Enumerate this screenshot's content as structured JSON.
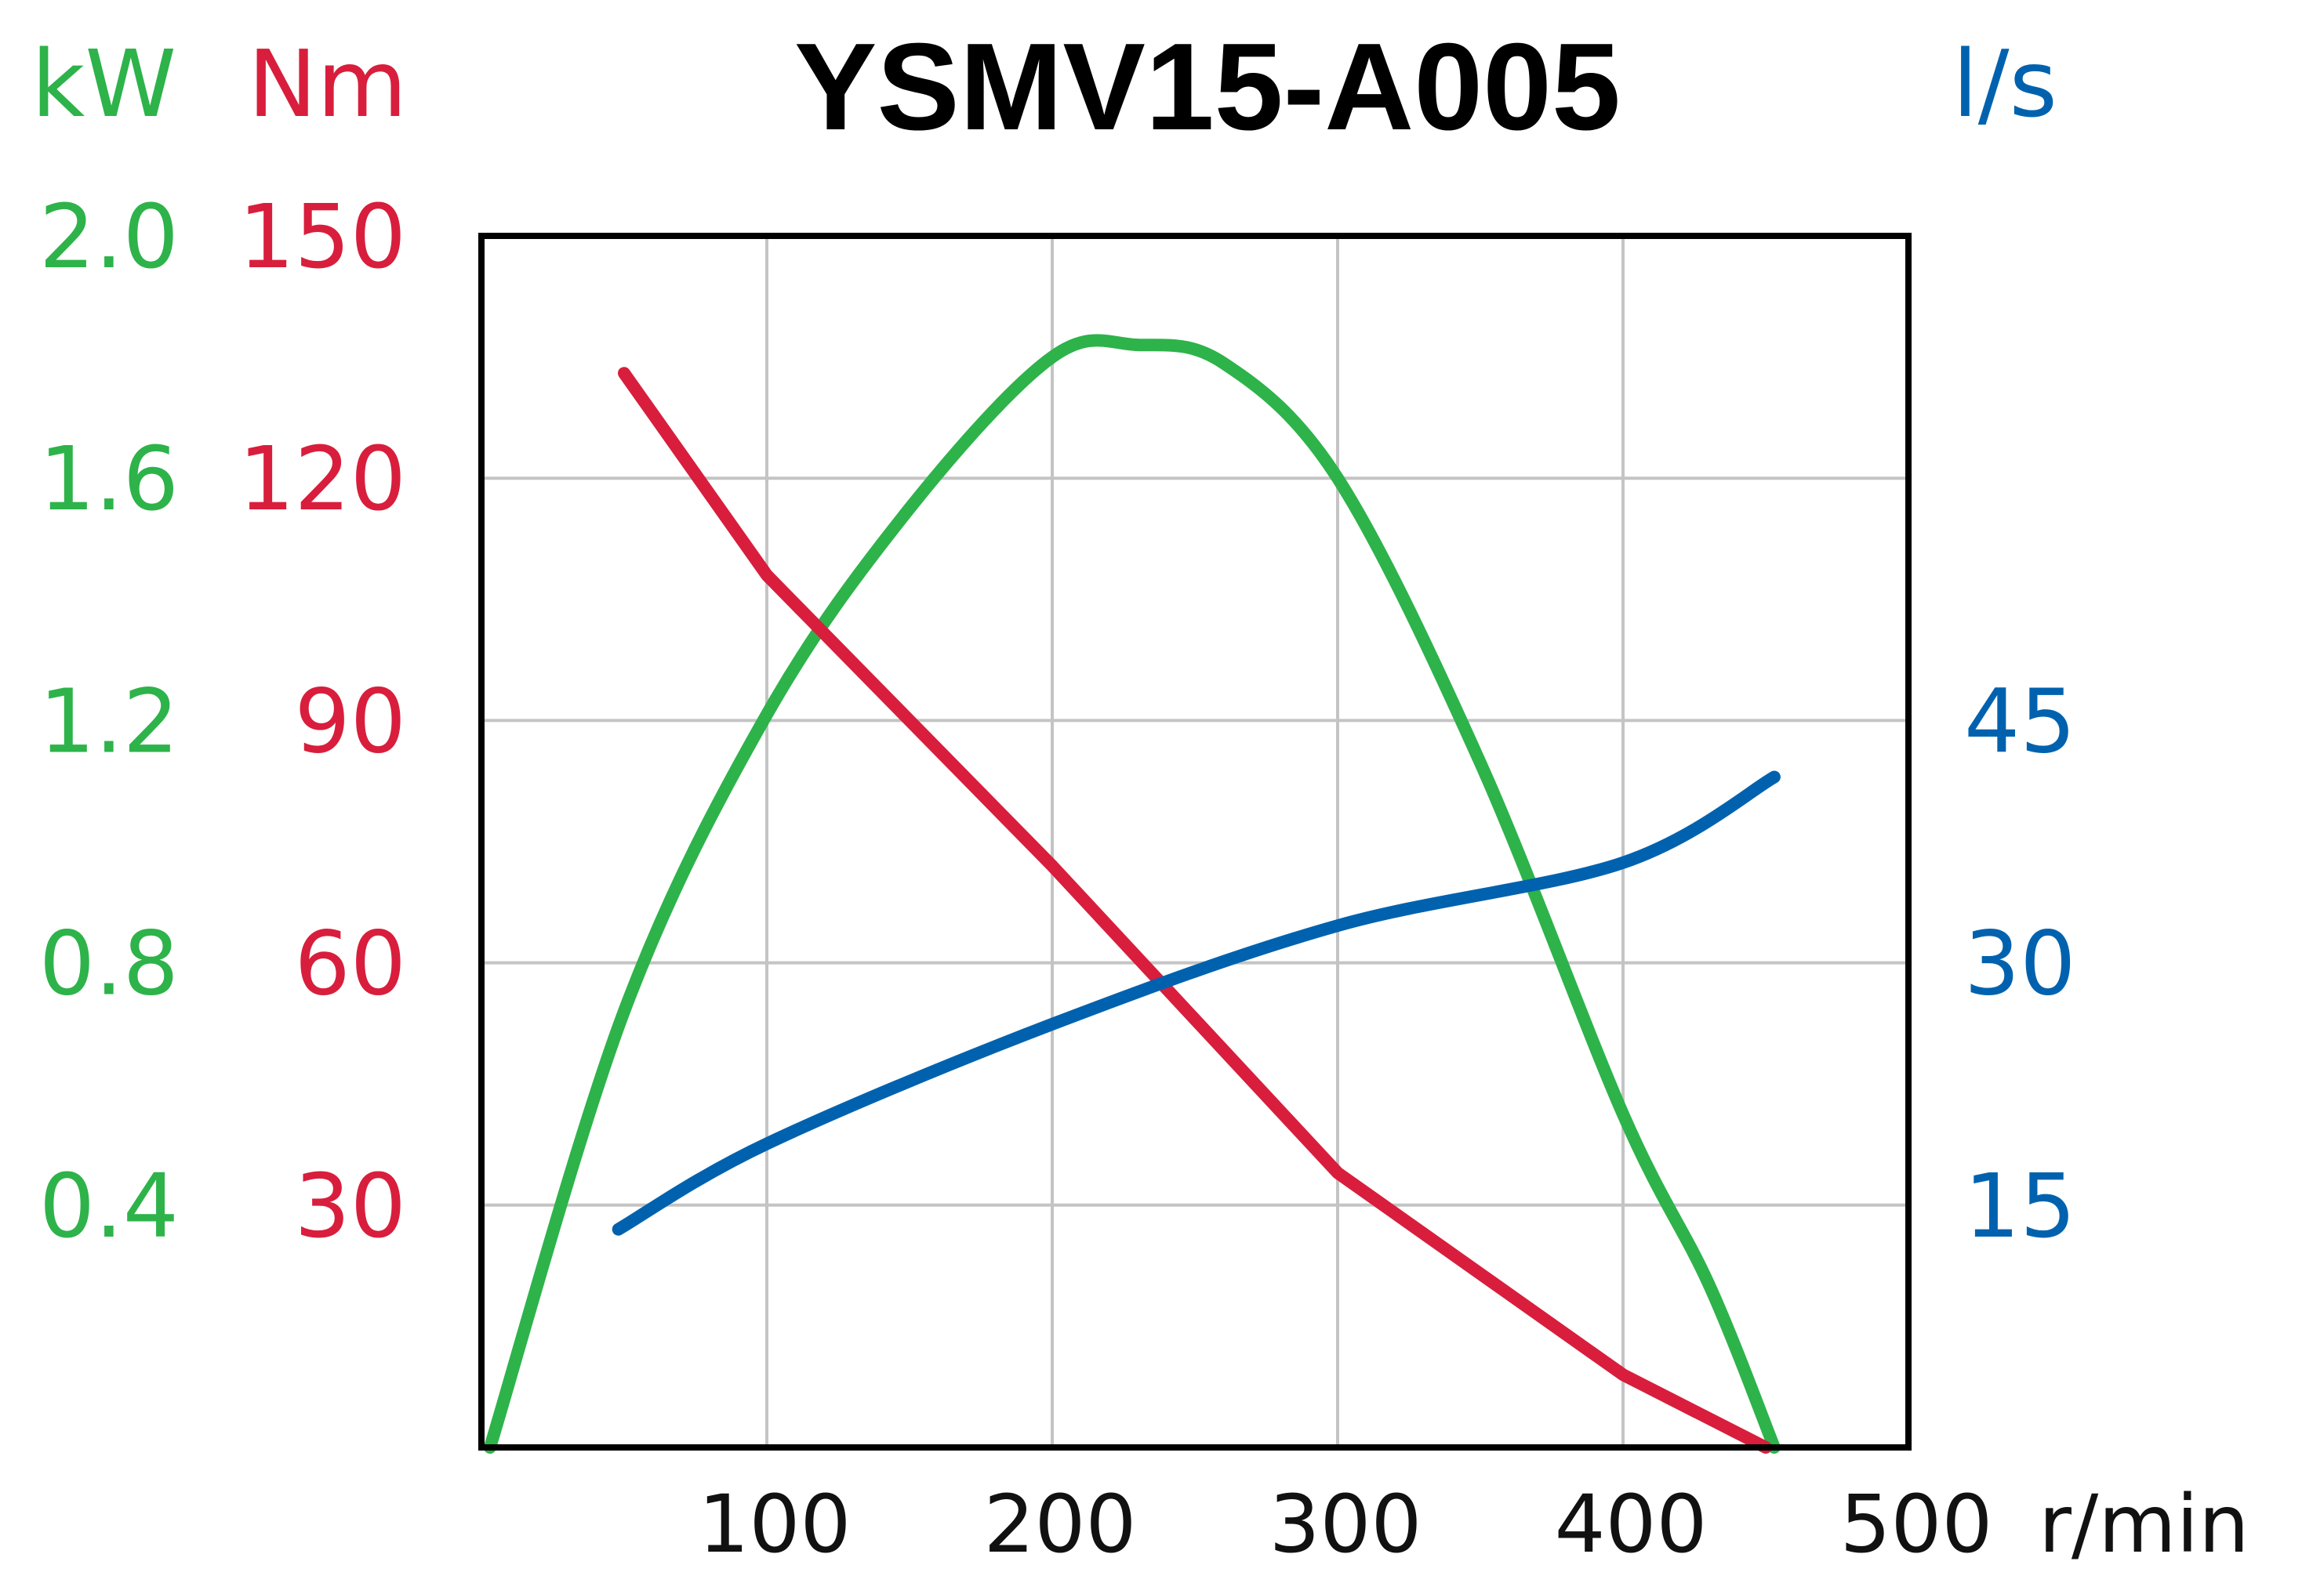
{
  "chart_data": {
    "type": "line",
    "title": "YSMV15-A005",
    "xlabel": "r/min",
    "x_ticks": [
      "100",
      "200",
      "300",
      "400",
      "500"
    ],
    "xlim": [
      0,
      500
    ],
    "grid": true,
    "axes": {
      "power": {
        "unit": "kW",
        "color": "#2db34a",
        "ylim": [
          0,
          2.0
        ],
        "tick_values": [
          0.4,
          0.8,
          1.2,
          1.6,
          2.0
        ],
        "tick_labels": [
          "0.4",
          "0.8",
          "1.2",
          "1.6",
          "2.0"
        ],
        "side": "left-outer"
      },
      "torque": {
        "unit": "Nm",
        "color": "#d81e3c",
        "ylim": [
          0,
          150
        ],
        "tick_values": [
          30,
          60,
          90,
          120,
          150
        ],
        "tick_labels": [
          "30",
          "60",
          "90",
          "120",
          "150"
        ],
        "side": "left-inner"
      },
      "flow": {
        "unit": "l/s",
        "color": "#0062ae",
        "ylim": [
          0,
          75
        ],
        "tick_values": [
          15,
          30,
          45
        ],
        "tick_labels": [
          "15",
          "30",
          "45"
        ],
        "side": "right"
      }
    },
    "series": [
      {
        "axis": "power",
        "color": "#2db34a",
        "x": [
          3,
          50,
          100,
          150,
          200,
          230,
          260,
          300,
          350,
          400,
          430,
          453
        ],
        "y": [
          0.0,
          0.72,
          1.21,
          1.55,
          1.8,
          1.82,
          1.79,
          1.6,
          1.13,
          0.55,
          0.27,
          0.0
        ]
      },
      {
        "axis": "torque",
        "color": "#d81e3c",
        "x": [
          50,
          100,
          200,
          300,
          400,
          450
        ],
        "y": [
          133,
          108,
          72,
          34,
          9,
          0
        ]
      },
      {
        "axis": "flow",
        "color": "#0062ae",
        "x": [
          48,
          100,
          200,
          300,
          400,
          453
        ],
        "y": [
          13.5,
          18.8,
          26.2,
          32.3,
          36.2,
          41.5
        ]
      }
    ]
  }
}
